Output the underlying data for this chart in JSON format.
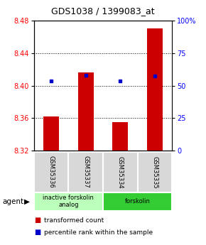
{
  "title": "GDS1038 / 1399083_at",
  "categories": [
    "GSM35336",
    "GSM35337",
    "GSM35334",
    "GSM35335"
  ],
  "bar_tops": [
    8.362,
    8.416,
    8.355,
    8.471
  ],
  "bar_bottom": 8.32,
  "percentile_values": [
    8.406,
    8.413,
    8.406,
    8.412
  ],
  "ylim": [
    8.32,
    8.48
  ],
  "yticks_left": [
    8.32,
    8.36,
    8.4,
    8.44,
    8.48
  ],
  "yticks_right_vals": [
    0,
    25,
    50,
    75,
    100
  ],
  "bar_color": "#cc0000",
  "dot_color": "#0000cc",
  "grid_lines": [
    8.36,
    8.4,
    8.44
  ],
  "agent_groups": [
    {
      "label": "inactive forskolin\nanalog",
      "span": [
        0,
        2
      ],
      "color": "#bbffbb"
    },
    {
      "label": "forskolin",
      "span": [
        2,
        4
      ],
      "color": "#33cc33"
    }
  ],
  "legend_items": [
    {
      "color": "#cc0000",
      "label": "transformed count"
    },
    {
      "color": "#0000cc",
      "label": "percentile rank within the sample"
    }
  ],
  "title_fontsize": 9,
  "tick_fontsize": 7,
  "gsm_fontsize": 6,
  "agent_fontsize": 6,
  "legend_fontsize": 6.5
}
